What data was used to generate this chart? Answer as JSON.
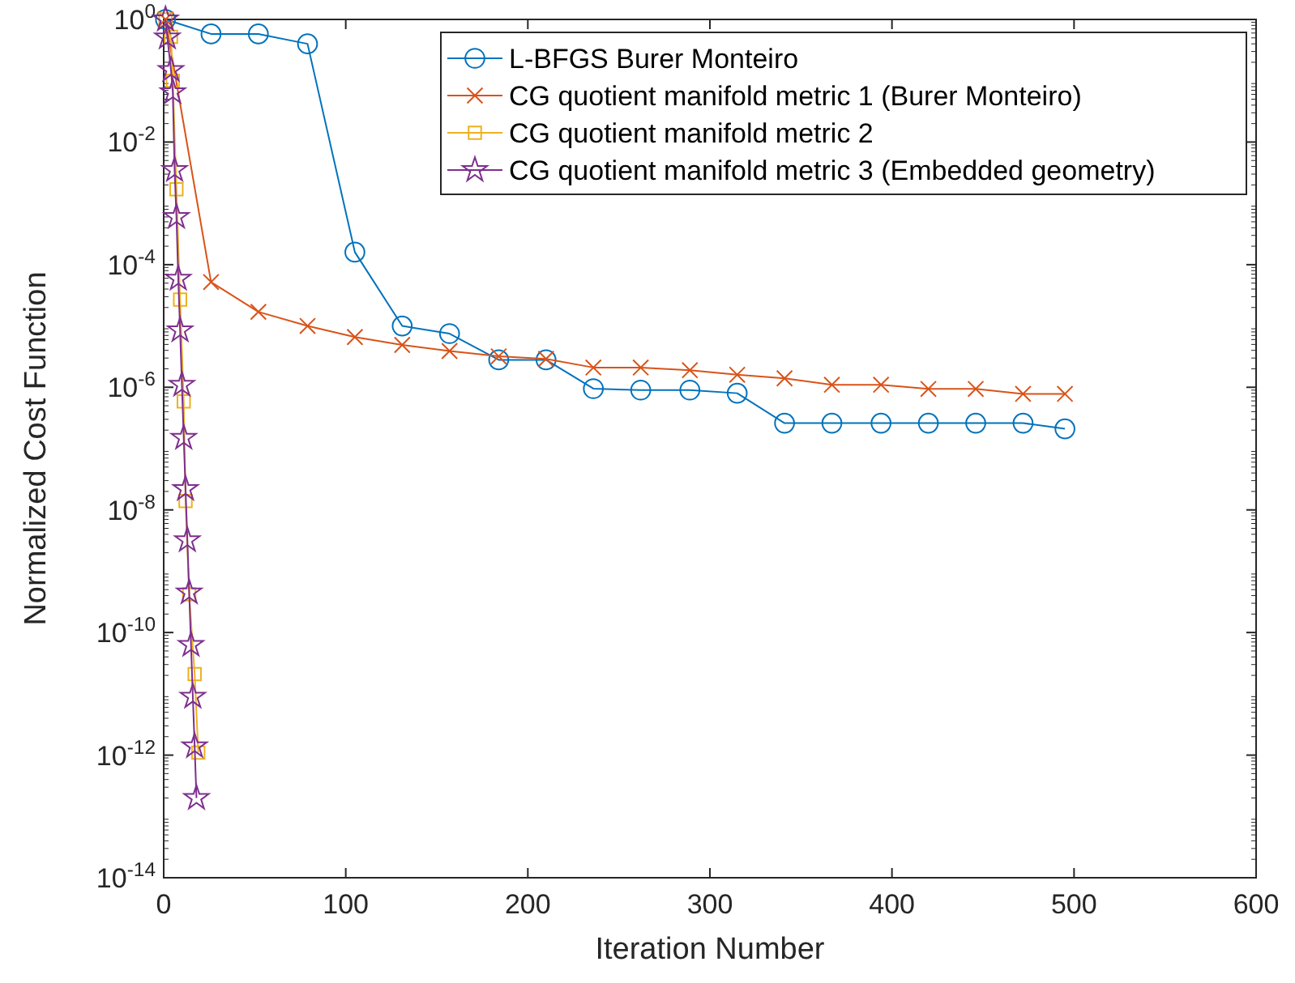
{
  "chart_data": {
    "type": "line",
    "xlabel": "Iteration Number",
    "ylabel": "Normalized Cost Function",
    "log": "y",
    "legend": "top right",
    "grid": false,
    "xlim": [
      0,
      600
    ],
    "xticks": [
      0,
      100,
      200,
      300,
      400,
      500,
      600
    ],
    "ylim": [
      1e-14,
      1
    ],
    "yticks": [
      {
        "value": 1e-14,
        "label": "10$^{-14}$"
      },
      {
        "value": 1e-12,
        "label": "10$^{-12}$"
      },
      {
        "value": 1e-10,
        "label": "10$^{-10}$"
      },
      {
        "value": 1e-08,
        "label": "10$^{-8}$"
      },
      {
        "value": 1e-06,
        "label": "10$^{-6}$"
      },
      {
        "value": 0.0001,
        "label": "10$^{-4}$"
      },
      {
        "value": 0.01,
        "label": "10$^{-2}$"
      },
      {
        "value": 1,
        "label": "10$^{0}$"
      }
    ],
    "series": [
      {
        "name": "L-BFGS Burer Monteiro",
        "color": "#0072bd",
        "marker": "circle",
        "x": [
          1,
          26,
          52,
          79,
          105,
          131,
          157,
          184,
          210,
          236,
          262,
          289,
          315,
          341,
          367,
          394,
          420,
          446,
          472,
          495
        ],
        "values": [
          1,
          0.58,
          0.58,
          0.4,
          0.00016,
          1e-05,
          7.5e-06,
          2.8e-06,
          2.8e-06,
          9.5e-07,
          9e-07,
          9e-07,
          8e-07,
          2.6e-07,
          2.6e-07,
          2.6e-07,
          2.6e-07,
          2.6e-07,
          2.6e-07,
          2.1e-07
        ]
      },
      {
        "name": "CG quotient manifold metric 1 (Burer Monteiro)",
        "color": "#d95319",
        "marker": "cross",
        "x": [
          1,
          26,
          52,
          79,
          105,
          131,
          157,
          184,
          210,
          236,
          262,
          289,
          315,
          341,
          367,
          394,
          420,
          446,
          472,
          495
        ],
        "values": [
          1,
          5.2e-05,
          1.7e-05,
          1e-05,
          6.6e-06,
          4.9e-06,
          3.9e-06,
          3.2e-06,
          2.9e-06,
          2.1e-06,
          2.1e-06,
          1.9e-06,
          1.6e-06,
          1.4e-06,
          1.1e-06,
          1.1e-06,
          9.4e-07,
          9.4e-07,
          7.8e-07,
          7.8e-07
        ]
      },
      {
        "name": "CG quotient manifold metric 2",
        "color": "#edb120",
        "marker": "square",
        "x": [
          1,
          4,
          5,
          7,
          9,
          11,
          12,
          14,
          17,
          19
        ],
        "values": [
          1,
          0.52,
          0.1,
          0.0017,
          2.7e-05,
          5.9e-07,
          1.4e-08,
          4.2e-10,
          2.1e-11,
          1.1e-12
        ]
      },
      {
        "name": "CG quotient manifold metric 3 (Embedded geometry)",
        "color": "#7e2f8e",
        "marker": "star",
        "x": [
          1,
          2,
          4,
          5,
          6,
          7,
          8,
          9,
          10,
          11,
          12,
          13,
          14,
          15,
          16,
          17,
          18
        ],
        "values": [
          1,
          0.51,
          0.15,
          0.065,
          0.0035,
          0.0006,
          5.9e-05,
          8.5e-06,
          1.1e-06,
          1.5e-07,
          2.2e-08,
          3.2e-09,
          4.5e-10,
          6.3e-11,
          9e-12,
          1.4e-12,
          2e-13
        ]
      }
    ]
  }
}
